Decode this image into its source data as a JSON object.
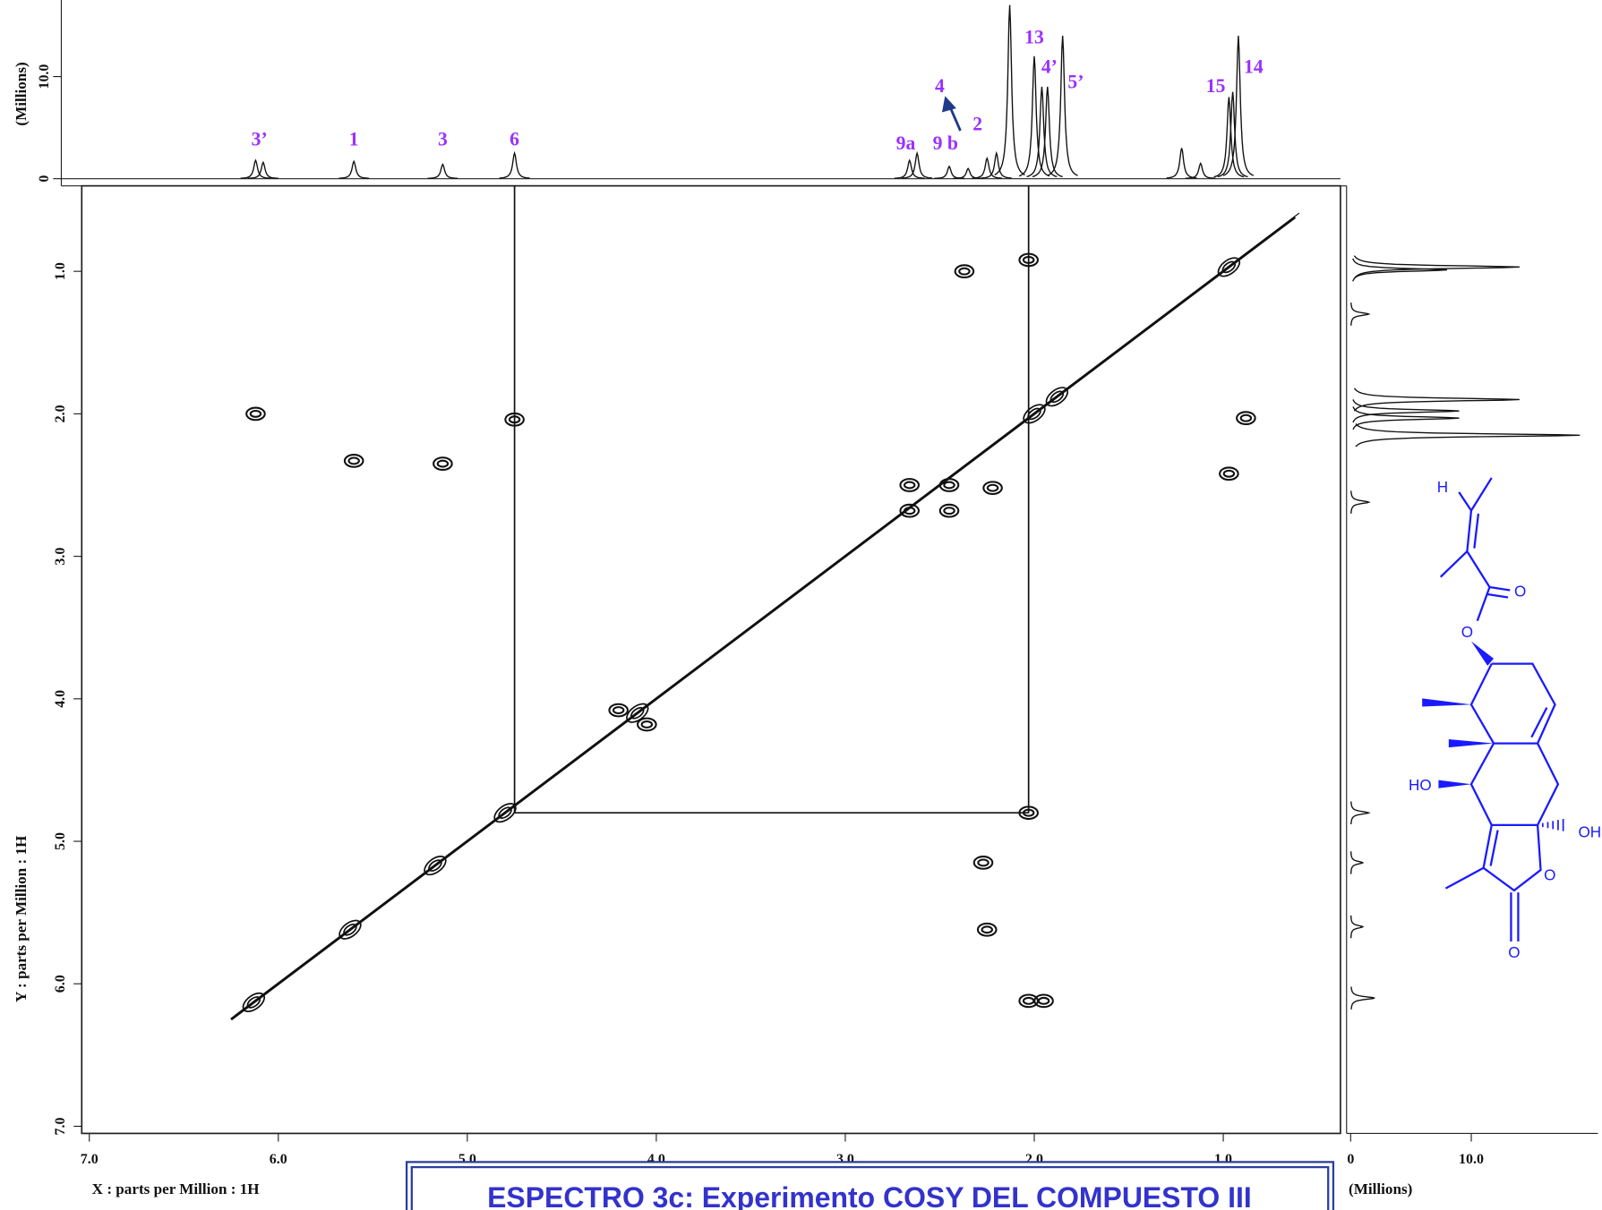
{
  "chart_data": {
    "type": "cosy",
    "title": "ESPECTRO  3c: Experimento COSY DEL COMPUESTO III",
    "xlabel": "X : parts per Million : 1H",
    "ylabel": "Y : parts per Million : 1H",
    "xlim": [
      7.04,
      0.38
    ],
    "ylim": [
      0.4,
      7.05
    ],
    "xticks": [
      {
        "value": 7,
        "label": "7.0"
      },
      {
        "value": 6,
        "label": "6.0"
      },
      {
        "value": 5,
        "label": "5.0"
      },
      {
        "value": 4,
        "label": "4.0"
      },
      {
        "value": 3,
        "label": "3.0"
      },
      {
        "value": 2,
        "label": "2.0"
      },
      {
        "value": 1,
        "label": "1.0"
      }
    ],
    "yticks": [
      {
        "value": 1,
        "label": "1.0"
      },
      {
        "value": 2,
        "label": "2.0"
      },
      {
        "value": 3,
        "label": "3.0"
      },
      {
        "value": 4,
        "label": "4.0"
      },
      {
        "value": 5,
        "label": "5.0"
      },
      {
        "value": 6,
        "label": "6.0"
      },
      {
        "value": 7,
        "label": "7.0"
      }
    ],
    "color": "#111111",
    "diagonal": [
      6.25,
      0.62
    ],
    "diagonal_peaks": [
      6.13,
      5.62,
      5.17,
      4.8,
      4.1,
      2.0,
      1.88,
      0.97
    ],
    "cross_peaks": {
      "x": [
        2.37,
        2.03,
        6.12,
        4.75,
        5.6,
        5.13,
        2.66,
        2.45,
        2.66,
        2.45,
        2.22,
        0.97,
        0.88,
        2.27,
        2.25,
        2.03,
        2.03,
        1.95,
        4.2,
        4.05
      ],
      "y": [
        1.0,
        0.92,
        2.0,
        2.04,
        2.33,
        2.35,
        2.5,
        2.5,
        2.68,
        2.68,
        2.52,
        2.42,
        2.03,
        5.15,
        5.62,
        4.8,
        6.12,
        6.12,
        4.08,
        4.18
      ]
    },
    "guides": {
      "x": [
        4.75,
        2.03
      ],
      "y": 4.8
    },
    "top_projection": {
      "ylabel": "(Millions)",
      "ylim": [
        -0.7,
        17.5
      ],
      "yticks": [
        0,
        {
          "value": 10,
          "label": "10.0"
        }
      ],
      "x": [
        6.12,
        6.08,
        5.6,
        5.13,
        4.75,
        2.66,
        2.62,
        2.45,
        2.35,
        2.25,
        2.2,
        2.13,
        2.0,
        1.96,
        1.93,
        1.85,
        1.22,
        1.12,
        0.97,
        0.95,
        0.92
      ],
      "values": [
        1.8,
        1.6,
        1.7,
        1.4,
        2.5,
        1.8,
        2.5,
        1.2,
        1.0,
        2.0,
        2.5,
        17.0,
        12.0,
        9.0,
        9.0,
        14.0,
        3.0,
        1.5,
        8.0,
        8.5,
        14.0
      ]
    },
    "right_projection": {
      "xlabel": "(Millions)",
      "xlim": [
        0,
        20.5
      ],
      "xticks": [
        0,
        {
          "value": 10,
          "label": "10.0"
        }
      ],
      "y": [
        0.97,
        0.99,
        1.3,
        1.9,
        1.98,
        2.03,
        2.15,
        2.62,
        4.8,
        5.15,
        5.6,
        6.1
      ],
      "values": [
        14.0,
        8.0,
        1.5,
        14.0,
        9.0,
        9.0,
        19.0,
        1.5,
        1.5,
        1.0,
        1.0,
        2.0
      ]
    },
    "peak_labels": [
      {
        "text": "3’",
        "x": 6.1
      },
      {
        "text": "1",
        "x": 5.6
      },
      {
        "text": "3",
        "x": 5.13
      },
      {
        "text": "6",
        "x": 4.75
      },
      {
        "text": "9a",
        "x": 2.68
      },
      {
        "text": "9 b",
        "x": 2.47
      },
      {
        "text": "4",
        "x": 2.5
      },
      {
        "text": "2",
        "x": 2.3
      },
      {
        "text": "13",
        "x": 2.0
      },
      {
        "text": "4’",
        "x": 1.92
      },
      {
        "text": "5’",
        "x": 1.78
      },
      {
        "text": "15",
        "x": 1.04
      },
      {
        "text": "14",
        "x": 0.84
      }
    ],
    "structure_labels": [
      "H",
      "O",
      "O",
      "HO",
      "OH",
      "O",
      "O"
    ]
  }
}
